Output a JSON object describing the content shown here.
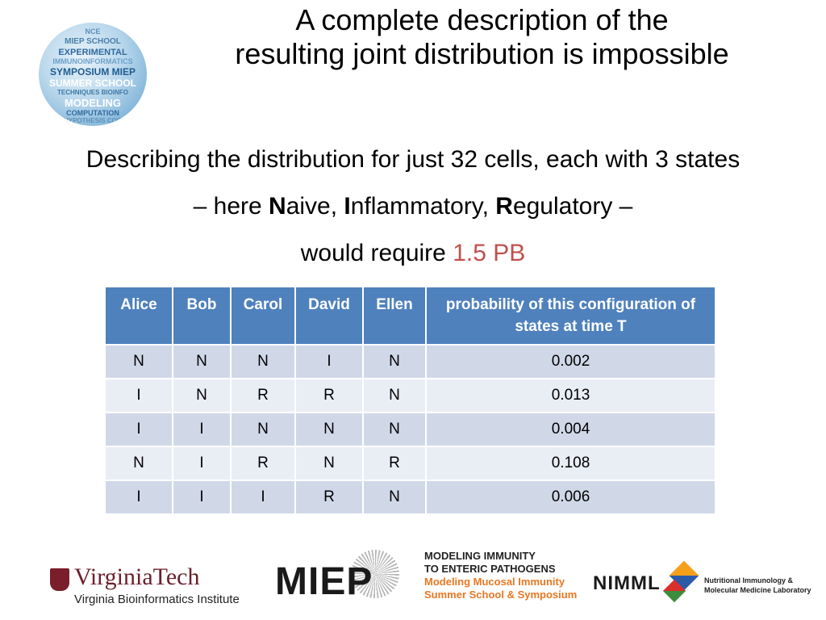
{
  "logo_words": [
    "NCE",
    "MIEP SCHOOL",
    "EXPERIMENTAL",
    "IMMUNOINFORMATICS",
    "SYMPOSIUM MIEP",
    "SUMMER SCHOOL",
    "TECHNIQUES BIOINFO",
    "MODELING",
    "COMPUTATION",
    "HYPOTHESIS COO"
  ],
  "title": {
    "line1": "A complete description of the",
    "line2": "resulting joint distribution is impossible"
  },
  "body": {
    "line1": "Describing the distribution for just 32 cells, each with 3 states",
    "line2_prefix": "– here ",
    "n_bold": "N",
    "n_rest": "aive, ",
    "i_bold": "I",
    "i_rest": "nflammatory, ",
    "r_bold": "R",
    "r_rest": "egulatory –",
    "line3_prefix": "would require ",
    "highlight": "1.5 PB"
  },
  "table": {
    "headers": [
      "Alice",
      "Bob",
      "Carol",
      "David",
      "Ellen",
      "probability of this configuration of states at time T"
    ],
    "rows": [
      [
        "N",
        "N",
        "N",
        "I",
        "N",
        "0.002"
      ],
      [
        "I",
        "N",
        "R",
        "R",
        "N",
        "0.013"
      ],
      [
        "I",
        "I",
        "N",
        "N",
        "N",
        "0.004"
      ],
      [
        "N",
        "I",
        "R",
        "N",
        "R",
        "0.108"
      ],
      [
        "I",
        "I",
        "I",
        "R",
        "N",
        "0.006"
      ]
    ]
  },
  "footer": {
    "vt_name": "VirginiaTech",
    "vt_sub": "Virginia Bioinformatics Institute",
    "miep_word": "MIEP",
    "miep_line1": "MODELING IMMUNITY",
    "miep_line2": "TO ENTERIC PATHOGENS",
    "miep_line3": "Modeling Mucosal Immunity",
    "miep_line4": "Summer School & Symposium",
    "nimml_word": "NIMML",
    "nimml_label1": "Nutritional Immunology &",
    "nimml_label2": "Molecular Medicine Laboratory"
  },
  "colors": {
    "header_bg": "#4f81bd",
    "row_odd": "#d0d8e8",
    "row_even": "#e9edf4",
    "highlight": "#c0504d",
    "vt_maroon": "#6d1f2b",
    "miep_orange": "#e87722"
  }
}
